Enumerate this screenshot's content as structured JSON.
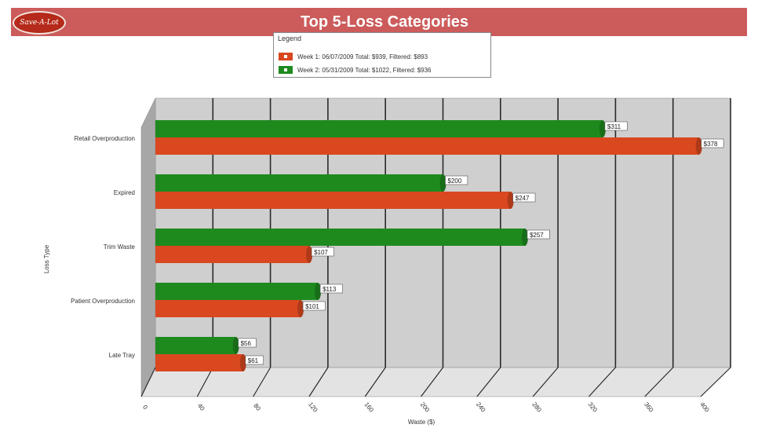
{
  "logo_text": "Save-A-Lot",
  "chart_data": {
    "type": "bar",
    "orientation": "horizontal",
    "title": "Top 5-Loss Categories",
    "xlabel": "Waste ($)",
    "ylabel": "Loss Type",
    "xlim": [
      0,
      400
    ],
    "x_ticks": [
      0,
      40,
      80,
      120,
      160,
      200,
      240,
      280,
      320,
      360,
      400
    ],
    "grid": true,
    "legend_title": "Legend",
    "legend_position": "top-center",
    "categories": [
      "Retail Overproduction",
      "Expired",
      "Trim Waste",
      "Patient Overproduction",
      "Late Tray"
    ],
    "series": [
      {
        "name": "Week 2: 05/31/2009 Total: $1022, Filtered: $936",
        "color": "#1e8a1e",
        "values": [
          311,
          200,
          257,
          113,
          56
        ],
        "labels": [
          "$311",
          "$200",
          "$257",
          "$113",
          "$56"
        ]
      },
      {
        "name": "Week 1: 06/07/2009 Total: $939, Filtered: $893",
        "color": "#d9481f",
        "values": [
          378,
          247,
          107,
          101,
          61
        ],
        "labels": [
          "$378",
          "$247",
          "$107",
          "$101",
          "$61"
        ]
      }
    ]
  }
}
